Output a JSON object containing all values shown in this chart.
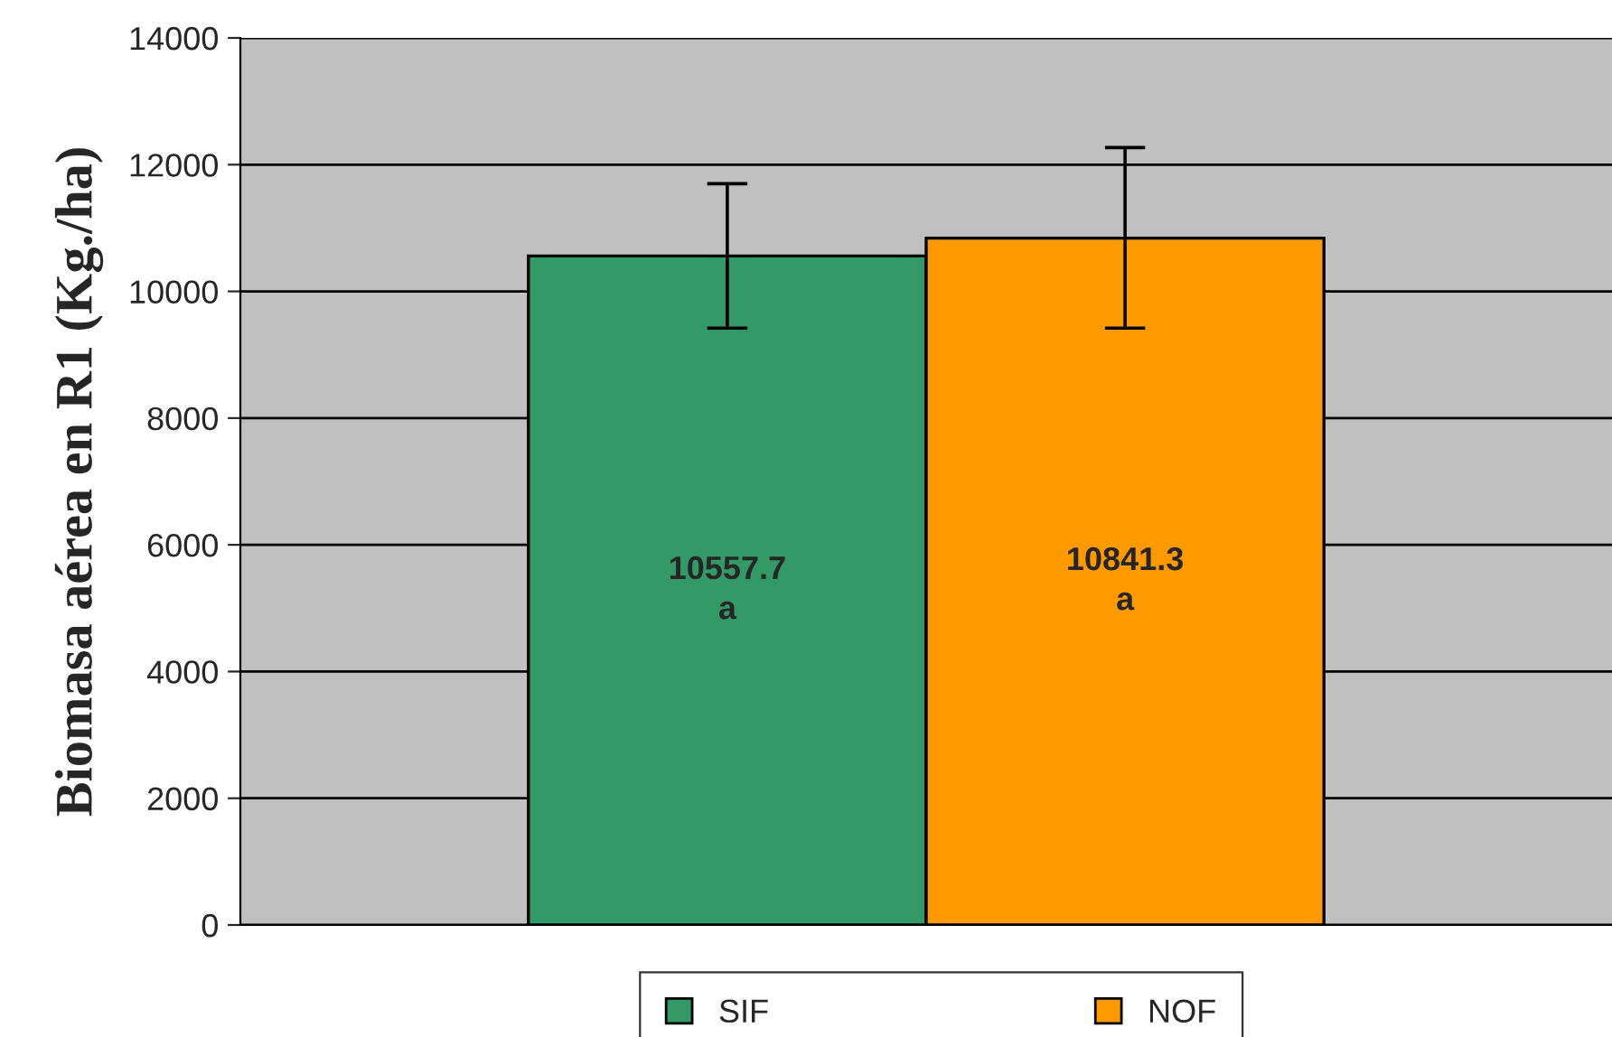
{
  "chart_data": {
    "type": "bar",
    "ylabel": "Biomasa aérea en R1 (Kg./ha)",
    "categories": [
      null
    ],
    "series": [
      {
        "name": "SIF",
        "color": "#339966",
        "values": [
          10557.7
        ],
        "errors": [
          [
            9420,
            11700
          ]
        ],
        "value_labels": [
          "10557.7\na"
        ]
      },
      {
        "name": "NOF",
        "color": "#ff9900",
        "values": [
          10841.3
        ],
        "errors": [
          [
            9420,
            12270
          ]
        ],
        "value_labels": [
          "10841.3\na"
        ]
      }
    ],
    "ylim": [
      0,
      14000
    ],
    "yticks": [
      0,
      2000,
      4000,
      6000,
      8000,
      10000,
      12000,
      14000
    ],
    "grid": "y",
    "legend": "bottom"
  }
}
